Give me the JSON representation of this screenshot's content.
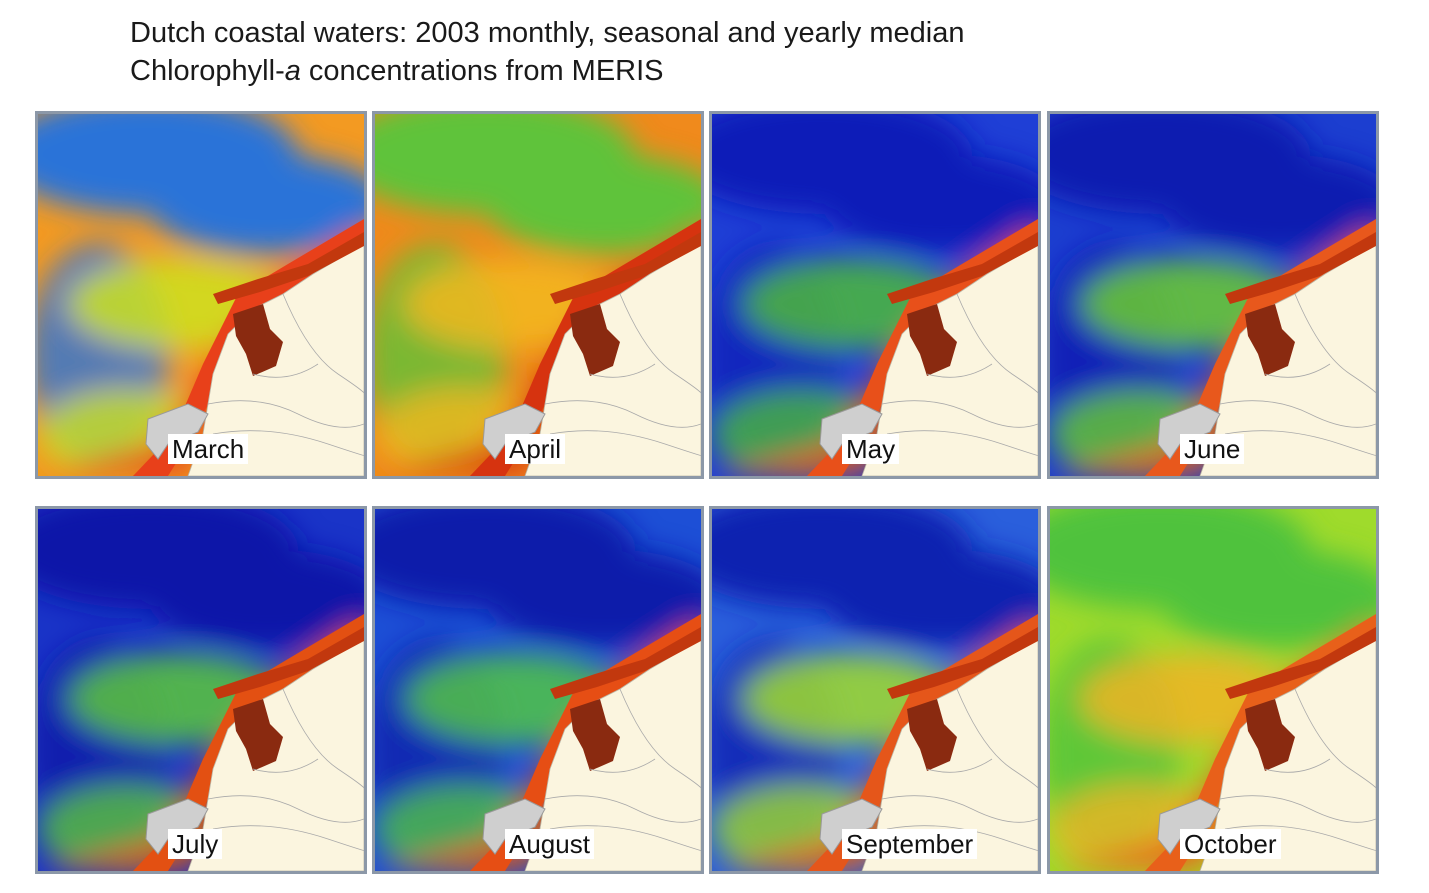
{
  "title": {
    "line1": "Dutch coastal waters: 2003 monthly, seasonal and yearly median",
    "line2_prefix": "Chlorophyll-",
    "line2_italic": "a",
    "line2_suffix": " concentrations from MERIS"
  },
  "panels": [
    {
      "label": "March",
      "bg": "#f39a22",
      "offshore": "#2a73d8",
      "mid": "#cde21f",
      "coast": "#e8401a"
    },
    {
      "label": "April",
      "bg": "#f08a1c",
      "offshore": "#5fc33a",
      "mid": "#f2b81f",
      "coast": "#d6330f"
    },
    {
      "label": "May",
      "bg": "#1f3fd6",
      "offshore": "#0a1fb8",
      "mid": "#4dbb3a",
      "coast": "#e8501a"
    },
    {
      "label": "June",
      "bg": "#1c3ed0",
      "offshore": "#0a1ab0",
      "mid": "#6ccf2e",
      "coast": "#e8581c"
    },
    {
      "label": "July",
      "bg": "#1a34c8",
      "offshore": "#0a16a8",
      "mid": "#5cc93a",
      "coast": "#e35012"
    },
    {
      "label": "August",
      "bg": "#1d4fd6",
      "offshore": "#0b1faa",
      "mid": "#52c646",
      "coast": "#e64e14"
    },
    {
      "label": "September",
      "bg": "#2a5fdc",
      "offshore": "#0a22b0",
      "mid": "#a2de2a",
      "coast": "#e5561a"
    },
    {
      "label": "October",
      "bg": "#9fdb2c",
      "offshore": "#4fc23c",
      "mid": "#f0b424",
      "coast": "#e8601a"
    }
  ]
}
